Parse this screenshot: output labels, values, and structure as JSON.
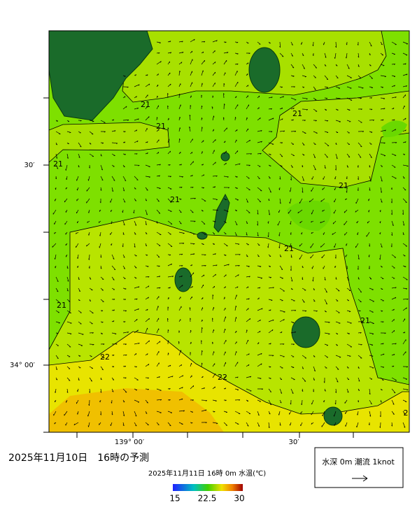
{
  "title": "2025年11月10日　16時の予測",
  "subtitle": "2025年11月11日 16時 0m 水温(℃)",
  "legend_text": "水深 0m 潮流 1knot",
  "colorbar_labels": [
    "15",
    "22.5",
    "30"
  ],
  "lat_labels": [
    "30′",
    "34° 00′"
  ],
  "lon_labels": [
    "139° 00′",
    "30′"
  ],
  "contour_labels": [
    "21",
    "21",
    "21",
    "21",
    "21",
    "21",
    "21",
    "21",
    "21",
    "22",
    "22",
    "2"
  ]
}
